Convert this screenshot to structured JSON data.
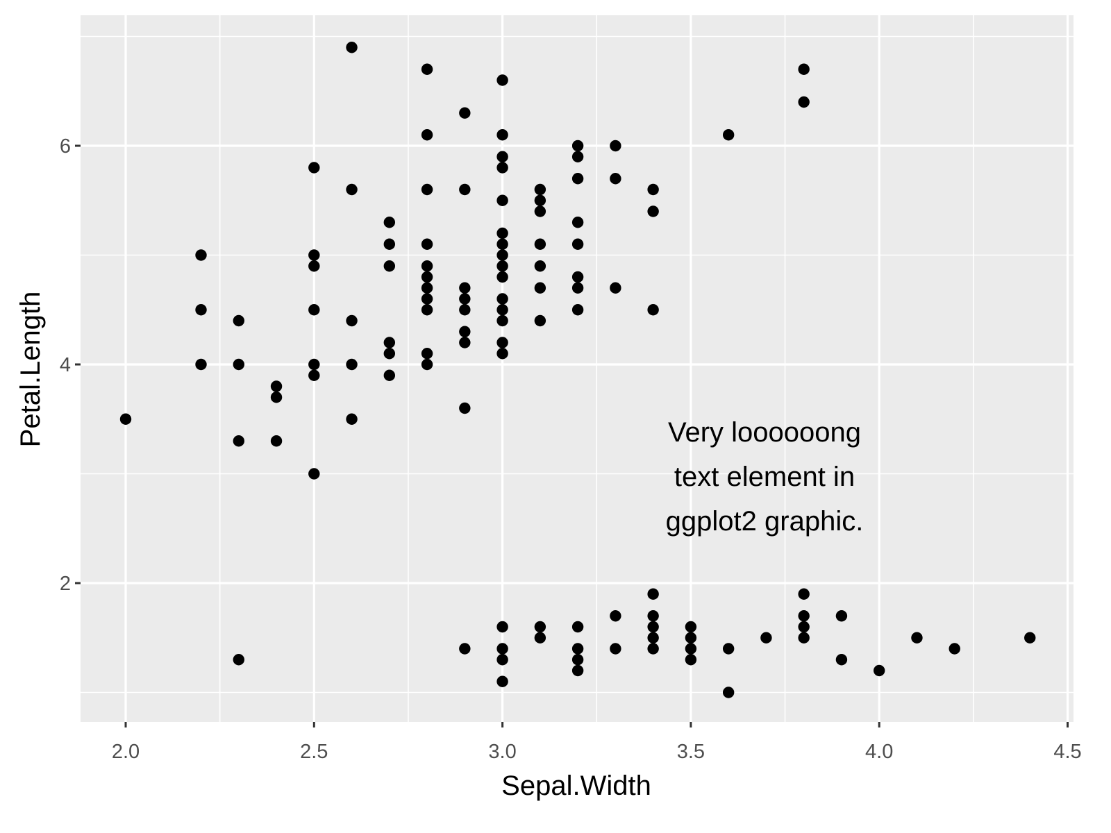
{
  "chart_data": {
    "type": "scatter",
    "title": "",
    "xlabel": "Sepal.Width",
    "ylabel": "Petal.Length",
    "xlim": [
      1.88,
      4.52
    ],
    "ylim": [
      0.69,
      7.16
    ],
    "x_ticks": [
      2.0,
      2.5,
      3.0,
      3.5,
      4.0,
      4.5
    ],
    "x_tick_labels": [
      "2.0",
      "2.5",
      "3.0",
      "3.5",
      "4.0",
      "4.5"
    ],
    "y_ticks": [
      2,
      4,
      6
    ],
    "y_tick_labels": [
      "2",
      "4",
      "6"
    ],
    "grid": true,
    "legend": "none",
    "annotation": {
      "lines": [
        "Very loooooong",
        "text element in",
        "ggplot2 graphic."
      ],
      "x": 3.4,
      "y": 3.0
    },
    "points": [
      [
        2.0,
        3.5
      ],
      [
        2.2,
        5.0
      ],
      [
        2.2,
        4.5
      ],
      [
        2.2,
        4.0
      ],
      [
        2.3,
        4.4
      ],
      [
        2.3,
        4.0
      ],
      [
        2.3,
        3.3
      ],
      [
        2.3,
        1.3
      ],
      [
        2.4,
        3.8
      ],
      [
        2.4,
        3.7
      ],
      [
        2.4,
        3.3
      ],
      [
        2.5,
        5.8
      ],
      [
        2.5,
        5.0
      ],
      [
        2.5,
        4.9
      ],
      [
        2.5,
        4.5
      ],
      [
        2.5,
        4.0
      ],
      [
        2.5,
        3.9
      ],
      [
        2.5,
        3.0
      ],
      [
        2.6,
        6.9
      ],
      [
        2.6,
        5.6
      ],
      [
        2.6,
        4.4
      ],
      [
        2.6,
        4.0
      ],
      [
        2.6,
        3.5
      ],
      [
        2.7,
        5.3
      ],
      [
        2.7,
        5.1
      ],
      [
        2.7,
        4.9
      ],
      [
        2.7,
        4.2
      ],
      [
        2.7,
        4.1
      ],
      [
        2.7,
        3.9
      ],
      [
        2.8,
        6.7
      ],
      [
        2.8,
        6.1
      ],
      [
        2.8,
        5.6
      ],
      [
        2.8,
        5.1
      ],
      [
        2.8,
        4.9
      ],
      [
        2.8,
        4.8
      ],
      [
        2.8,
        4.7
      ],
      [
        2.8,
        4.6
      ],
      [
        2.8,
        4.5
      ],
      [
        2.8,
        4.1
      ],
      [
        2.8,
        4.0
      ],
      [
        2.9,
        6.3
      ],
      [
        2.9,
        5.6
      ],
      [
        2.9,
        4.7
      ],
      [
        2.9,
        4.6
      ],
      [
        2.9,
        4.5
      ],
      [
        2.9,
        4.3
      ],
      [
        2.9,
        4.2
      ],
      [
        2.9,
        3.6
      ],
      [
        2.9,
        1.4
      ],
      [
        3.0,
        6.6
      ],
      [
        3.0,
        6.1
      ],
      [
        3.0,
        5.9
      ],
      [
        3.0,
        5.8
      ],
      [
        3.0,
        5.5
      ],
      [
        3.0,
        5.2
      ],
      [
        3.0,
        5.1
      ],
      [
        3.0,
        5.0
      ],
      [
        3.0,
        4.9
      ],
      [
        3.0,
        4.8
      ],
      [
        3.0,
        4.6
      ],
      [
        3.0,
        4.5
      ],
      [
        3.0,
        4.4
      ],
      [
        3.0,
        4.2
      ],
      [
        3.0,
        4.1
      ],
      [
        3.0,
        1.6
      ],
      [
        3.0,
        1.4
      ],
      [
        3.0,
        1.3
      ],
      [
        3.0,
        1.1
      ],
      [
        3.1,
        5.6
      ],
      [
        3.1,
        5.5
      ],
      [
        3.1,
        5.4
      ],
      [
        3.1,
        5.1
      ],
      [
        3.1,
        4.9
      ],
      [
        3.1,
        4.7
      ],
      [
        3.1,
        4.4
      ],
      [
        3.1,
        1.6
      ],
      [
        3.1,
        1.5
      ],
      [
        3.2,
        6.0
      ],
      [
        3.2,
        5.9
      ],
      [
        3.2,
        5.7
      ],
      [
        3.2,
        5.3
      ],
      [
        3.2,
        5.1
      ],
      [
        3.2,
        4.8
      ],
      [
        3.2,
        4.7
      ],
      [
        3.2,
        4.5
      ],
      [
        3.2,
        1.6
      ],
      [
        3.2,
        1.4
      ],
      [
        3.2,
        1.3
      ],
      [
        3.2,
        1.2
      ],
      [
        3.3,
        6.0
      ],
      [
        3.3,
        5.7
      ],
      [
        3.3,
        4.7
      ],
      [
        3.3,
        1.7
      ],
      [
        3.3,
        1.4
      ],
      [
        3.4,
        5.6
      ],
      [
        3.4,
        5.4
      ],
      [
        3.4,
        4.5
      ],
      [
        3.4,
        1.9
      ],
      [
        3.4,
        1.7
      ],
      [
        3.4,
        1.6
      ],
      [
        3.4,
        1.5
      ],
      [
        3.4,
        1.4
      ],
      [
        3.5,
        1.6
      ],
      [
        3.5,
        1.5
      ],
      [
        3.5,
        1.4
      ],
      [
        3.5,
        1.3
      ],
      [
        3.6,
        6.1
      ],
      [
        3.6,
        1.4
      ],
      [
        3.6,
        1.0
      ],
      [
        3.7,
        1.5
      ],
      [
        3.8,
        6.7
      ],
      [
        3.8,
        6.4
      ],
      [
        3.8,
        1.9
      ],
      [
        3.8,
        1.7
      ],
      [
        3.8,
        1.6
      ],
      [
        3.8,
        1.5
      ],
      [
        3.9,
        1.7
      ],
      [
        3.9,
        1.3
      ],
      [
        4.0,
        1.2
      ],
      [
        4.1,
        1.5
      ],
      [
        4.2,
        1.4
      ],
      [
        4.4,
        1.5
      ]
    ],
    "point_color": "#000000",
    "panel_background": "#ebebeb",
    "grid_color": "#ffffff"
  }
}
